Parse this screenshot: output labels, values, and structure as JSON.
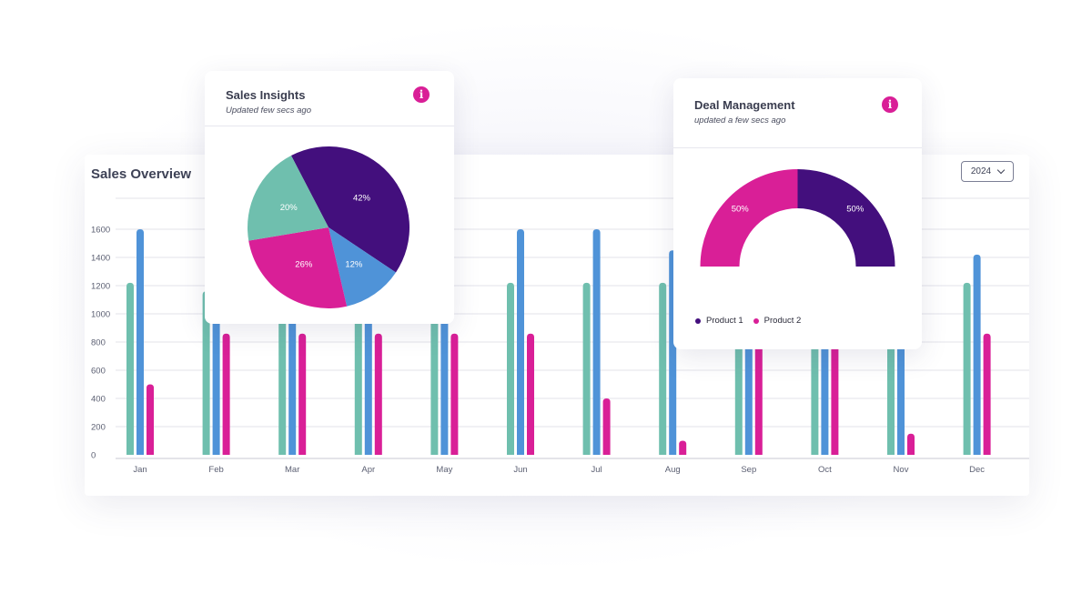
{
  "overview": {
    "title": "Sales Overview",
    "year_selector": {
      "value": "2024"
    }
  },
  "insights": {
    "title": "Sales Insights",
    "subtitle": "Updated few secs ago"
  },
  "deal": {
    "title": "Deal Management",
    "subtitle": "updated a few secs ago",
    "legend": [
      {
        "label": "Product 1",
        "color": "#430f7d"
      },
      {
        "label": "Product 2",
        "color": "#d91f97"
      }
    ]
  },
  "colors": {
    "teal": "#6fbfae",
    "blue": "#4f93d8",
    "magenta": "#d91f97",
    "purple": "#430f7d"
  },
  "chart_data": [
    {
      "type": "bar",
      "title": "Sales Overview",
      "categories": [
        "Jan",
        "Feb",
        "Mar",
        "Apr",
        "May",
        "Jun",
        "Jul",
        "Aug",
        "Sep",
        "Oct",
        "Nov",
        "Dec"
      ],
      "series": [
        {
          "color": "#6fbfae",
          "values": [
            1220,
            1160,
            1220,
            1220,
            1220,
            1220,
            1220,
            1220,
            1220,
            1220,
            1220,
            1220
          ]
        },
        {
          "color": "#4f93d8",
          "values": [
            1600,
            1600,
            1600,
            1600,
            1600,
            1600,
            1600,
            1450,
            1600,
            1600,
            1600,
            1420
          ]
        },
        {
          "color": "#d91f97",
          "values": [
            500,
            860,
            860,
            860,
            860,
            860,
            400,
            100,
            860,
            860,
            150,
            860
          ]
        }
      ],
      "yticks": [
        0,
        200,
        400,
        600,
        800,
        1000,
        1200,
        1400,
        1600
      ],
      "ylim": [
        0,
        1600
      ],
      "grid": true
    },
    {
      "type": "pie",
      "title": "Sales Insights",
      "slices": [
        {
          "label": "42%",
          "value": 42,
          "color": "#430f7d"
        },
        {
          "label": "12%",
          "value": 12,
          "color": "#4f93d8"
        },
        {
          "label": "26%",
          "value": 26,
          "color": "#d91f97"
        },
        {
          "label": "20%",
          "value": 20,
          "color": "#6fbfae"
        }
      ]
    },
    {
      "type": "pie",
      "title": "Deal Management",
      "slices": [
        {
          "label": "50%",
          "value": 50,
          "name": "Product 2",
          "color": "#d91f97"
        },
        {
          "label": "50%",
          "value": 50,
          "name": "Product 1",
          "color": "#430f7d"
        }
      ]
    }
  ]
}
